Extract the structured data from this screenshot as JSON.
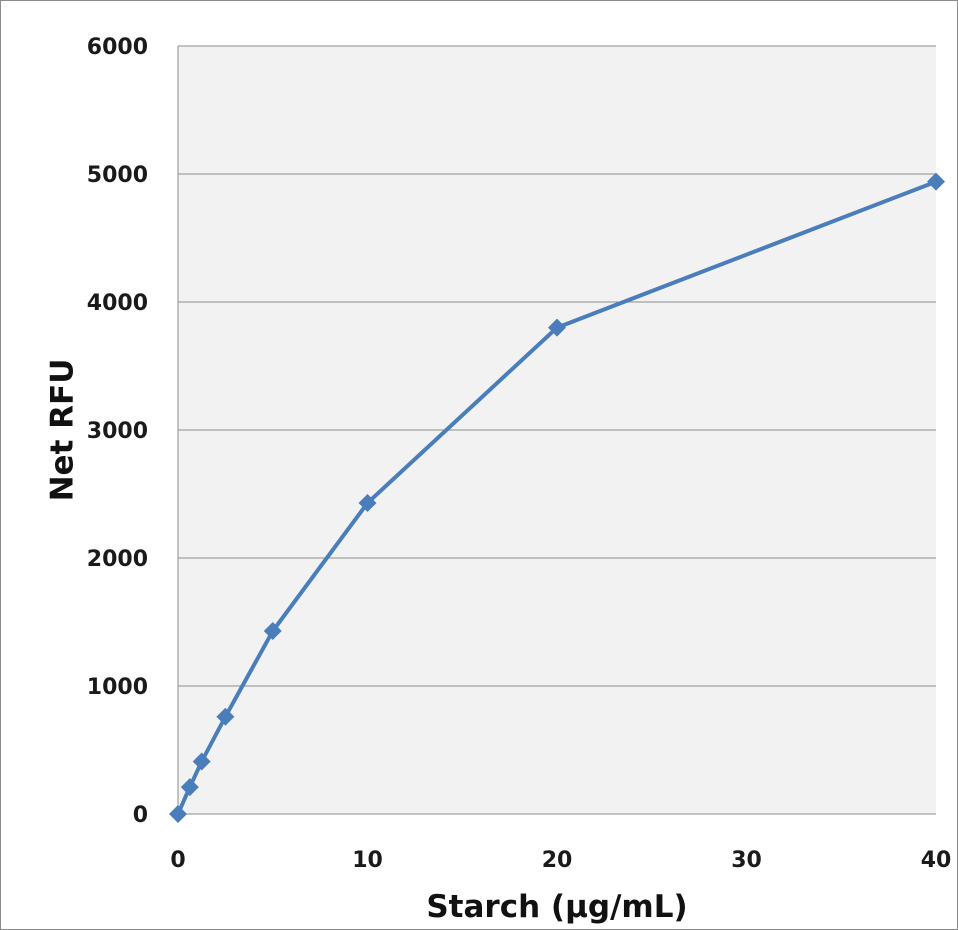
{
  "chart_data": {
    "type": "scatter",
    "title": "",
    "xlabel": "Starch (µg/mL)",
    "ylabel": "Net RFU",
    "xlim": [
      0,
      40
    ],
    "ylim": [
      0,
      6000
    ],
    "x_ticks": [
      "0",
      "10",
      "20",
      "30",
      "40"
    ],
    "y_ticks": [
      "0",
      "1000",
      "2000",
      "3000",
      "4000",
      "5000",
      "6000"
    ],
    "grid": "horizontal",
    "legend": "none",
    "series": [
      {
        "color": "#4a7ebb",
        "marker": "diamond",
        "lines": true,
        "x": [
          0,
          0.625,
          1.25,
          2.5,
          5,
          10,
          20,
          40
        ],
        "y": [
          0,
          210,
          410,
          760,
          1430,
          2430,
          3800,
          4940
        ]
      }
    ]
  },
  "colors": {
    "plot_background": "#f2f2f2",
    "gridline": "#8c8c8c",
    "series": "#4a7ebb"
  }
}
